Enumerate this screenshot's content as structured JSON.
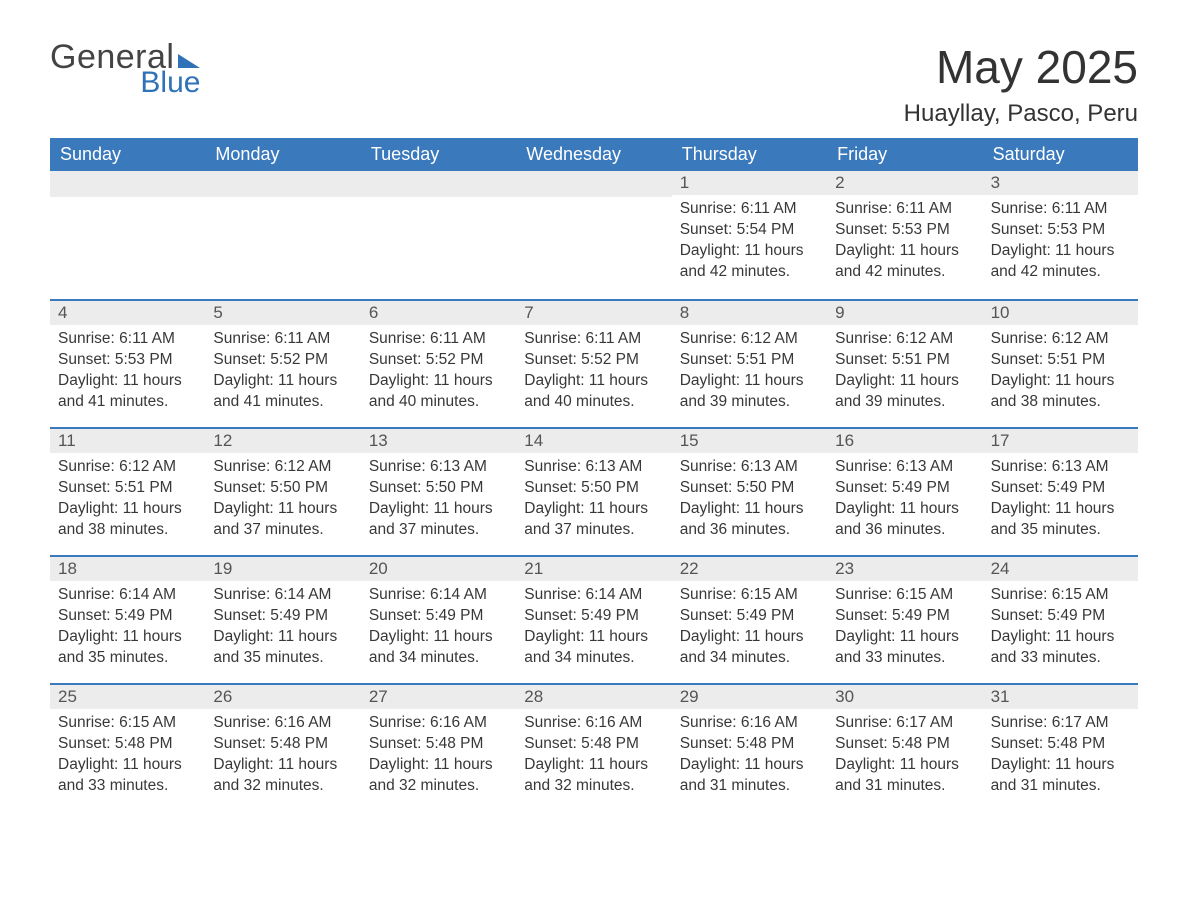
{
  "brand": {
    "word1": "General",
    "word2": "Blue",
    "accent_color": "#2f72b8"
  },
  "title": "May 2025",
  "location": "Huayllay, Pasco, Peru",
  "colors": {
    "header_bg": "#3a79bc",
    "header_text": "#ffffff",
    "daynum_bg": "#ececec",
    "daynum_text": "#555555",
    "border": "#3a79bc",
    "body_text": "#383838",
    "background": "#ffffff"
  },
  "day_labels": [
    "Sunday",
    "Monday",
    "Tuesday",
    "Wednesday",
    "Thursday",
    "Friday",
    "Saturday"
  ],
  "labels": {
    "sunrise": "Sunrise:",
    "sunset": "Sunset:",
    "daylight": "Daylight:"
  },
  "weeks": [
    [
      null,
      null,
      null,
      null,
      {
        "n": "1",
        "sunrise": "6:11 AM",
        "sunset": "5:54 PM",
        "daylight": "11 hours and 42 minutes."
      },
      {
        "n": "2",
        "sunrise": "6:11 AM",
        "sunset": "5:53 PM",
        "daylight": "11 hours and 42 minutes."
      },
      {
        "n": "3",
        "sunrise": "6:11 AM",
        "sunset": "5:53 PM",
        "daylight": "11 hours and 42 minutes."
      }
    ],
    [
      {
        "n": "4",
        "sunrise": "6:11 AM",
        "sunset": "5:53 PM",
        "daylight": "11 hours and 41 minutes."
      },
      {
        "n": "5",
        "sunrise": "6:11 AM",
        "sunset": "5:52 PM",
        "daylight": "11 hours and 41 minutes."
      },
      {
        "n": "6",
        "sunrise": "6:11 AM",
        "sunset": "5:52 PM",
        "daylight": "11 hours and 40 minutes."
      },
      {
        "n": "7",
        "sunrise": "6:11 AM",
        "sunset": "5:52 PM",
        "daylight": "11 hours and 40 minutes."
      },
      {
        "n": "8",
        "sunrise": "6:12 AM",
        "sunset": "5:51 PM",
        "daylight": "11 hours and 39 minutes."
      },
      {
        "n": "9",
        "sunrise": "6:12 AM",
        "sunset": "5:51 PM",
        "daylight": "11 hours and 39 minutes."
      },
      {
        "n": "10",
        "sunrise": "6:12 AM",
        "sunset": "5:51 PM",
        "daylight": "11 hours and 38 minutes."
      }
    ],
    [
      {
        "n": "11",
        "sunrise": "6:12 AM",
        "sunset": "5:51 PM",
        "daylight": "11 hours and 38 minutes."
      },
      {
        "n": "12",
        "sunrise": "6:12 AM",
        "sunset": "5:50 PM",
        "daylight": "11 hours and 37 minutes."
      },
      {
        "n": "13",
        "sunrise": "6:13 AM",
        "sunset": "5:50 PM",
        "daylight": "11 hours and 37 minutes."
      },
      {
        "n": "14",
        "sunrise": "6:13 AM",
        "sunset": "5:50 PM",
        "daylight": "11 hours and 37 minutes."
      },
      {
        "n": "15",
        "sunrise": "6:13 AM",
        "sunset": "5:50 PM",
        "daylight": "11 hours and 36 minutes."
      },
      {
        "n": "16",
        "sunrise": "6:13 AM",
        "sunset": "5:49 PM",
        "daylight": "11 hours and 36 minutes."
      },
      {
        "n": "17",
        "sunrise": "6:13 AM",
        "sunset": "5:49 PM",
        "daylight": "11 hours and 35 minutes."
      }
    ],
    [
      {
        "n": "18",
        "sunrise": "6:14 AM",
        "sunset": "5:49 PM",
        "daylight": "11 hours and 35 minutes."
      },
      {
        "n": "19",
        "sunrise": "6:14 AM",
        "sunset": "5:49 PM",
        "daylight": "11 hours and 35 minutes."
      },
      {
        "n": "20",
        "sunrise": "6:14 AM",
        "sunset": "5:49 PM",
        "daylight": "11 hours and 34 minutes."
      },
      {
        "n": "21",
        "sunrise": "6:14 AM",
        "sunset": "5:49 PM",
        "daylight": "11 hours and 34 minutes."
      },
      {
        "n": "22",
        "sunrise": "6:15 AM",
        "sunset": "5:49 PM",
        "daylight": "11 hours and 34 minutes."
      },
      {
        "n": "23",
        "sunrise": "6:15 AM",
        "sunset": "5:49 PM",
        "daylight": "11 hours and 33 minutes."
      },
      {
        "n": "24",
        "sunrise": "6:15 AM",
        "sunset": "5:49 PM",
        "daylight": "11 hours and 33 minutes."
      }
    ],
    [
      {
        "n": "25",
        "sunrise": "6:15 AM",
        "sunset": "5:48 PM",
        "daylight": "11 hours and 33 minutes."
      },
      {
        "n": "26",
        "sunrise": "6:16 AM",
        "sunset": "5:48 PM",
        "daylight": "11 hours and 32 minutes."
      },
      {
        "n": "27",
        "sunrise": "6:16 AM",
        "sunset": "5:48 PM",
        "daylight": "11 hours and 32 minutes."
      },
      {
        "n": "28",
        "sunrise": "6:16 AM",
        "sunset": "5:48 PM",
        "daylight": "11 hours and 32 minutes."
      },
      {
        "n": "29",
        "sunrise": "6:16 AM",
        "sunset": "5:48 PM",
        "daylight": "11 hours and 31 minutes."
      },
      {
        "n": "30",
        "sunrise": "6:17 AM",
        "sunset": "5:48 PM",
        "daylight": "11 hours and 31 minutes."
      },
      {
        "n": "31",
        "sunrise": "6:17 AM",
        "sunset": "5:48 PM",
        "daylight": "11 hours and 31 minutes."
      }
    ]
  ]
}
